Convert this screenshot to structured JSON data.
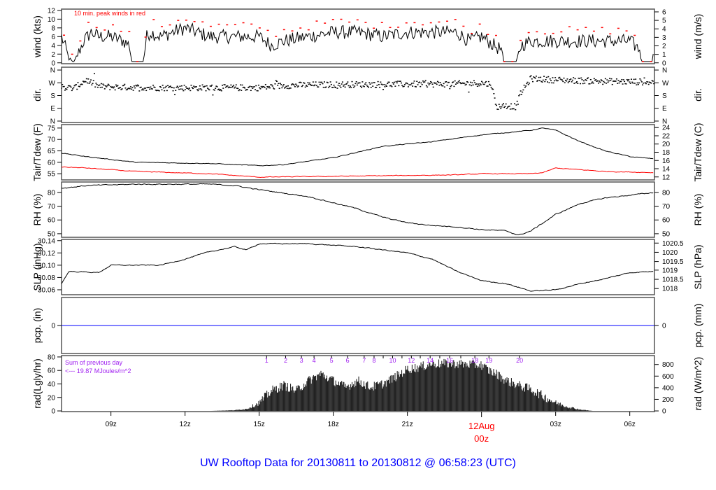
{
  "title": "UW Rooftop Data for 20130811  to  20130812 @ 06:58:23  (UTC)",
  "colors": {
    "line": "#000000",
    "peak": "#ff0000",
    "dew": "#ff0000",
    "pcp": "#0000ff",
    "title": "#0000ff",
    "note": "#a020f0",
    "date": "#ff0000"
  },
  "chart_data": {
    "type": "line",
    "x_unit": "hours since 07z 11Aug",
    "xlim": [
      0,
      24
    ],
    "x_ticks": [
      {
        "t": 2,
        "label": "09z"
      },
      {
        "t": 5,
        "label": "12z"
      },
      {
        "t": 8,
        "label": "15z"
      },
      {
        "t": 11,
        "label": "18z"
      },
      {
        "t": 14,
        "label": "21z"
      },
      {
        "t": 20,
        "label": "03z"
      },
      {
        "t": 23,
        "label": "06z"
      }
    ],
    "date_marker": {
      "t": 17,
      "date": "12Aug",
      "label": "00z"
    },
    "panels": [
      {
        "id": "wind",
        "left_label": "wind (kts)",
        "right_label": "wind (m/s)",
        "ylim": [
          -0.2,
          12.3
        ],
        "left_ticks": [
          0,
          2,
          4,
          6,
          8,
          10,
          12
        ],
        "left_tick_labels": [
          "0",
          "2",
          "4",
          "6",
          "8",
          "10",
          "12"
        ],
        "right_ticks_data": [
          0,
          1.944,
          3.888,
          5.832,
          7.776,
          9.72,
          11.664
        ],
        "right_tick_labels": [
          "0",
          "1",
          "2",
          "3",
          "4",
          "5",
          "6"
        ],
        "annotation": "10 min. peak winds in red",
        "series": [
          {
            "name": "wind",
            "kind": "noisy-line",
            "noise": 1.6,
            "t": [
              0,
              0.3,
              0.5,
              0.9,
              1.2,
              1.5,
              2,
              2.5,
              2.75,
              2.85,
              3.3,
              3.45,
              3.6,
              4,
              5,
              6,
              7,
              8,
              8.5,
              9,
              10,
              11,
              12,
              13,
              14,
              15,
              16,
              16.5,
              17,
              17.5,
              17.8,
              17.9,
              18.4,
              18.6,
              19,
              20,
              21,
              22,
              23,
              23.4,
              23.5,
              23.9,
              24
            ],
            "v": [
              6,
              1,
              0,
              5,
              7,
              6,
              6,
              5,
              4,
              0,
              0,
              6,
              7,
              6,
              8,
              6,
              6,
              6,
              4,
              5,
              6,
              7,
              7,
              6,
              7,
              7,
              7,
              5,
              6,
              4,
              3,
              0,
              0,
              4,
              5,
              5,
              5,
              5,
              5,
              3,
              0,
              0,
              3
            ]
          }
        ],
        "peaks": "wind+2.2"
      },
      {
        "id": "dir",
        "left_label": "dir.",
        "right_label": "dir.",
        "ylim": [
          -10,
          380
        ],
        "left_ticks": [
          0,
          90,
          180,
          270,
          360
        ],
        "left_tick_labels": [
          "N",
          "E",
          "S",
          "W",
          "N"
        ],
        "right_ticks_data": [
          0,
          90,
          180,
          270,
          360
        ],
        "right_tick_labels": [
          "N",
          "E",
          "S",
          "W",
          "N"
        ],
        "series": [
          {
            "name": "direction",
            "kind": "scatter",
            "noise": 22,
            "t": [
              0,
              0.5,
              1,
              1.5,
              2,
              4,
              6,
              8,
              9,
              10,
              12,
              14,
              16,
              17,
              17.4,
              17.6,
              18,
              18.4,
              18.6,
              19,
              20,
              22,
              24
            ],
            "v": [
              240,
              230,
              290,
              245,
              240,
              235,
              235,
              235,
              250,
              255,
              258,
              260,
              262,
              268,
              260,
              100,
              110,
              100,
              200,
              300,
              290,
              280,
              275
            ]
          }
        ]
      },
      {
        "id": "temp",
        "left_label": "Tair/Tdew (F)",
        "right_label": "Tair/Tdew (C)",
        "ylim": [
          52.3,
          76.5
        ],
        "left_ticks": [
          55,
          60,
          65,
          70,
          75
        ],
        "left_tick_labels": [
          "55",
          "60",
          "65",
          "70",
          "75"
        ],
        "right_ticks_data": [
          53.6,
          57.2,
          60.8,
          64.4,
          68,
          71.6,
          75.2
        ],
        "right_tick_labels": [
          "12",
          "14",
          "16",
          "18",
          "20",
          "22",
          "24"
        ],
        "series": [
          {
            "name": "Tair",
            "kind": "noisy-line",
            "noise": 0.25,
            "color_key": "line",
            "t": [
              0,
              1,
              3,
              6,
              8,
              9,
              11,
              13,
              15,
              17,
              19,
              19.5,
              20,
              21,
              22,
              23,
              24
            ],
            "v": [
              64,
              62.5,
              60,
              59.5,
              58.5,
              59,
              62,
              67,
              69,
              72,
              74,
              75,
              74,
              69,
              65,
              62.5,
              61.5
            ]
          },
          {
            "name": "Tdew",
            "kind": "noisy-line",
            "noise": 0.25,
            "color_key": "dew",
            "t": [
              0,
              1,
              3,
              6,
              8,
              12,
              16,
              17,
              19,
              19.5,
              20,
              22,
              24
            ],
            "v": [
              58,
              57.5,
              56,
              55,
              53.5,
              54,
              54.5,
              55,
              55,
              55.5,
              57.5,
              56,
              55.5
            ]
          }
        ]
      },
      {
        "id": "rh",
        "left_label": "RH (%)",
        "right_label": "RH (%)",
        "ylim": [
          47.4,
          87.6
        ],
        "left_ticks": [
          50,
          60,
          70,
          80
        ],
        "left_tick_labels": [
          "50",
          "60",
          "70",
          "80"
        ],
        "right_ticks_data": [
          50,
          60,
          70,
          80
        ],
        "right_tick_labels": [
          "50",
          "60",
          "70",
          "80"
        ],
        "series": [
          {
            "name": "RH",
            "kind": "noisy-line",
            "noise": 0.6,
            "t": [
              0,
              1,
              3,
              6,
              7,
              8,
              10,
              12,
              13,
              14,
              15,
              16,
              17,
              18,
              18.5,
              19,
              20,
              21,
              22,
              23,
              24
            ],
            "v": [
              83,
              85,
              86,
              86,
              85,
              82,
              77,
              68,
              62,
              58,
              56,
              55,
              53,
              52,
              49,
              52,
              64,
              72,
              76,
              78,
              80
            ]
          }
        ]
      },
      {
        "id": "slp",
        "left_label": "SLP (inHg)",
        "right_label": "SLP (hPa)",
        "ylim": [
          30.052,
          30.142
        ],
        "left_ticks": [
          30.06,
          30.08,
          30.1,
          30.12,
          30.14
        ],
        "left_tick_labels": [
          "30.06",
          "30.08",
          "30.10",
          "30.12",
          "30.14"
        ],
        "right_ticks_data": [
          30.062,
          30.077,
          30.092,
          30.106,
          30.121,
          30.136
        ],
        "right_tick_labels": [
          "1018",
          "1018.5",
          "1019",
          "1019.5",
          "1020",
          "1020.5"
        ],
        "series": [
          {
            "name": "SLP",
            "kind": "noisy-line",
            "noise": 0.0012,
            "t": [
              0,
              0.3,
              1.5,
              2,
              4,
              5,
              6,
              7,
              7.5,
              8,
              10,
              12,
              13,
              14,
              15,
              16,
              17,
              18,
              19,
              20,
              21,
              22,
              23,
              24
            ],
            "v": [
              30.07,
              30.09,
              30.088,
              30.1,
              30.1,
              30.11,
              30.122,
              30.13,
              30.125,
              30.135,
              30.135,
              30.13,
              30.125,
              30.12,
              30.11,
              30.09,
              30.075,
              30.07,
              30.058,
              30.06,
              30.07,
              30.078,
              30.088,
              30.09
            ]
          }
        ]
      },
      {
        "id": "pcp",
        "left_label": "pcp. (in)",
        "right_label": "pcp. (mm)",
        "ylim": [
          -1,
          1
        ],
        "left_ticks": [
          0
        ],
        "left_tick_labels": [
          "0"
        ],
        "right_ticks_data": [
          0
        ],
        "right_tick_labels": [
          "0"
        ],
        "series": [
          {
            "name": "precip",
            "kind": "flat",
            "color_key": "pcp",
            "t": [
              0,
              24
            ],
            "v": [
              0,
              0
            ]
          }
        ]
      },
      {
        "id": "rad",
        "left_label": "rad(Lgly/hr)",
        "right_label": "rad (W/m^2)",
        "ylim": [
          -1,
          82
        ],
        "left_ticks": [
          0,
          20,
          40,
          60,
          80
        ],
        "left_tick_labels": [
          "0",
          "20",
          "40",
          "60",
          "80"
        ],
        "right_ticks_data": [
          0,
          17.2,
          34.4,
          51.6,
          68.8
        ],
        "right_tick_labels": [
          "0",
          "200",
          "400",
          "600",
          "800"
        ],
        "series": [
          {
            "name": "radiation",
            "kind": "bars",
            "noise": 14,
            "t": [
              0,
              6,
              7,
              7.5,
              8,
              8.5,
              9,
              9.5,
              10,
              10.5,
              11,
              11.5,
              12,
              12.5,
              13,
              13.5,
              14,
              14.5,
              15,
              15.5,
              16,
              17,
              17.3,
              17.6,
              18,
              18.5,
              19,
              19.5,
              20,
              20.5,
              21,
              21.5,
              24
            ],
            "v": [
              0,
              0,
              1,
              3,
              12,
              30,
              38,
              30,
              45,
              55,
              45,
              35,
              45,
              35,
              40,
              50,
              62,
              65,
              70,
              70,
              70,
              68,
              60,
              55,
              45,
              38,
              32,
              22,
              12,
              6,
              2,
              0,
              0
            ]
          }
        ]
      }
    ],
    "rad_note": {
      "line1": "Sum of previous day",
      "line2": "<--- 19.87 MJoules/m^2"
    },
    "hour_markers": [
      {
        "t": 8.3,
        "label": "1"
      },
      {
        "t": 9.07,
        "label": "2"
      },
      {
        "t": 9.71,
        "label": "3"
      },
      {
        "t": 10.22,
        "label": "4"
      },
      {
        "t": 10.93,
        "label": "5"
      },
      {
        "t": 11.58,
        "label": "6"
      },
      {
        "t": 12.25,
        "label": "7"
      },
      {
        "t": 12.65,
        "label": "8"
      },
      {
        "t": 13.02,
        "label": ""
      },
      {
        "t": 13.4,
        "label": "10"
      },
      {
        "t": 13.78,
        "label": ""
      },
      {
        "t": 14.16,
        "label": "12"
      },
      {
        "t": 14.52,
        "label": ""
      },
      {
        "t": 14.92,
        "label": "14"
      },
      {
        "t": 15.31,
        "label": ""
      },
      {
        "t": 15.71,
        "label": "16"
      },
      {
        "t": 16.16,
        "label": ""
      },
      {
        "t": 16.73,
        "label": "18"
      },
      {
        "t": 17.3,
        "label": "19"
      },
      {
        "t": 18.54,
        "label": "20"
      }
    ]
  }
}
